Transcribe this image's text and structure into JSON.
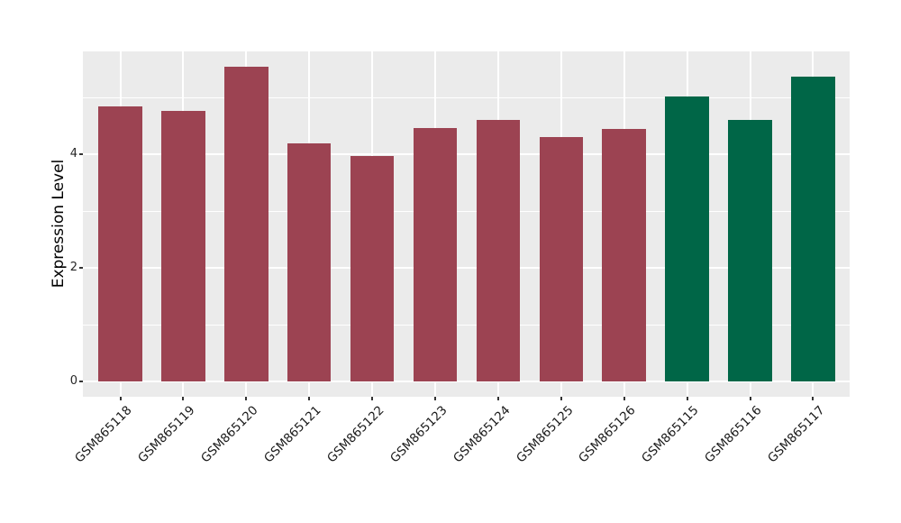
{
  "chart_data": {
    "type": "bar",
    "title": "",
    "xlabel": "",
    "ylabel": "Expression Level",
    "categories": [
      "GSM865118",
      "GSM865119",
      "GSM865120",
      "GSM865121",
      "GSM865122",
      "GSM865123",
      "GSM865124",
      "GSM865125",
      "GSM865126",
      "GSM865115",
      "GSM865116",
      "GSM865117"
    ],
    "values": [
      4.83,
      4.76,
      5.54,
      4.19,
      3.97,
      4.46,
      4.6,
      4.3,
      4.44,
      5.01,
      4.6,
      5.36
    ],
    "bar_colors": [
      "#9C4352",
      "#9C4352",
      "#9C4352",
      "#9C4352",
      "#9C4352",
      "#9C4352",
      "#9C4352",
      "#9C4352",
      "#9C4352",
      "#006647",
      "#006647",
      "#006647"
    ],
    "group_colors": {
      "crimson_group": "#9C4352",
      "green_group": "#006647"
    },
    "yticks": [
      0,
      2,
      4
    ],
    "minor_gridticks": [
      1,
      3,
      5
    ],
    "ylim": [
      -0.28,
      5.81
    ],
    "grid": "on",
    "legend": "none",
    "panel_background": "#EBEBEB",
    "gridline_color": "#FFFFFF",
    "tick_mark_color": "#333333",
    "axis_text_color": "#262626"
  }
}
